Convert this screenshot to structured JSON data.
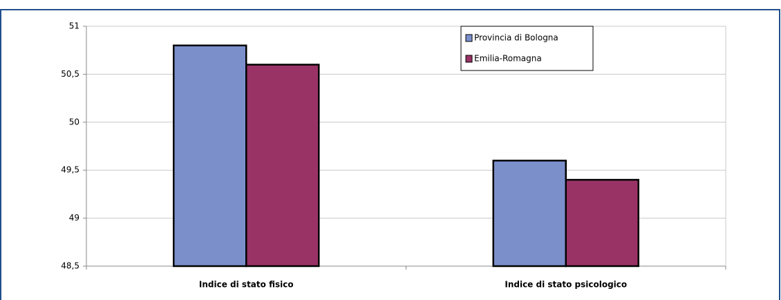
{
  "chart_data": {
    "type": "bar",
    "categories": [
      "Indice di stato fisico",
      "Indice di stato psicologico"
    ],
    "series": [
      {
        "name": "Provincia di Bologna",
        "color": "#7b8fcb",
        "values": [
          50.8,
          49.6
        ]
      },
      {
        "name": "Emilia-Romagna",
        "color": "#993366",
        "values": [
          50.6,
          49.4
        ]
      }
    ],
    "ylim": [
      48.5,
      51
    ],
    "yticks": [
      {
        "value": 48.5,
        "label": "48,5"
      },
      49,
      {
        "value": 49.5,
        "label": "49,5"
      },
      50,
      {
        "value": 50.5,
        "label": "50,5"
      },
      51
    ],
    "grid": true,
    "legend": "top-right"
  }
}
